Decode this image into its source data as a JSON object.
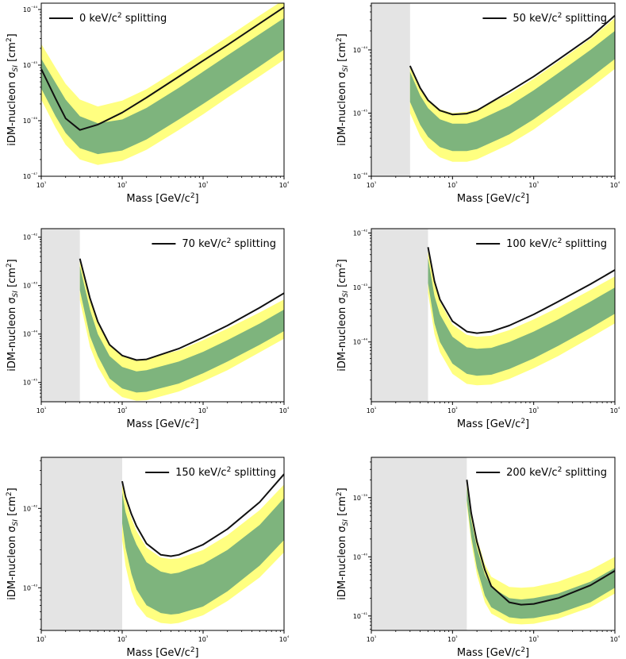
{
  "figure": {
    "xlabel": "Mass [GeV/c²]",
    "ylabel": "iDM-nucleon σ"
  },
  "colors": {
    "band2": "#ffff80",
    "band1": "#7eb47d",
    "curve": "#111111",
    "excluded": "#e4e4e4",
    "axis": "#000000"
  },
  "chart_data": [
    {
      "type": "line",
      "title": "",
      "legend": "0 keV/c² splitting",
      "legend_position": "top-left",
      "xlabel": "Mass [GeV/c²]",
      "ylabel": "iDM-nucleon σSI [cm²]",
      "xlim": [
        10,
        10000
      ],
      "ylim": [
        1e-47,
        1.3e-44
      ],
      "x_scale": "log",
      "y_scale": "log",
      "xticks": [
        {
          "v": 10,
          "label": "10¹"
        },
        {
          "v": 100,
          "label": "10²"
        },
        {
          "v": 1000,
          "label": "10³"
        },
        {
          "v": 10000,
          "label": "10⁴"
        }
      ],
      "yticks": [
        {
          "v": 1e-47,
          "label": "10⁻⁴⁷"
        },
        {
          "v": 1e-46,
          "label": "10⁻⁴⁶"
        },
        {
          "v": 1e-45,
          "label": "10⁻⁴⁵"
        },
        {
          "v": 1e-44,
          "label": "10⁻⁴⁴"
        }
      ],
      "excluded_mass_below": null,
      "x": [
        10,
        15,
        20,
        30,
        50,
        100,
        200,
        500,
        1000,
        2000,
        5000,
        10000
      ],
      "series": [
        {
          "name": "observed limit",
          "values": [
            8.5e-46,
            2.5e-46,
            1.1e-46,
            6.8e-47,
            8.5e-47,
            1.4e-46,
            2.6e-46,
            6.2e-46,
            1.2e-45,
            2.3e-45,
            5.6e-45,
            1.1e-44
          ]
        },
        {
          "name": "+2σ",
          "values": [
            2.4e-45,
            9e-46,
            4.6e-46,
            2.4e-46,
            1.8e-46,
            2.3e-46,
            3.7e-46,
            8.5e-46,
            1.65e-45,
            3.2e-45,
            7.8e-45,
            1.5e-44
          ]
        },
        {
          "name": "+1σ",
          "values": [
            1.3e-45,
            4.8e-46,
            2.4e-46,
            1.2e-46,
            9e-47,
            1.05e-46,
            1.7e-46,
            3.9e-46,
            7.6e-46,
            1.5e-45,
            3.6e-45,
            7e-45
          ]
        },
        {
          "name": "-1σ",
          "values": [
            3.8e-46,
            1.2e-46,
            6e-47,
            3.2e-47,
            2.5e-47,
            2.9e-47,
            4.6e-47,
            1.05e-46,
            2e-46,
            3.9e-46,
            9.5e-46,
            1.9e-45
          ]
        },
        {
          "name": "-2σ",
          "values": [
            2.4e-46,
            7.5e-47,
            3.7e-47,
            2e-47,
            1.6e-47,
            1.9e-47,
            3e-47,
            6.8e-47,
            1.3e-46,
            2.6e-46,
            6.3e-46,
            1.25e-45
          ]
        }
      ]
    },
    {
      "type": "line",
      "title": "",
      "legend": "50 keV/c² splitting",
      "legend_position": "top-right",
      "xlabel": "Mass [GeV/c²]",
      "ylabel": "iDM-nucleon σSI [cm²]",
      "xlim": [
        10,
        10000
      ],
      "ylim": [
        1e-46,
        5.5e-44
      ],
      "x_scale": "log",
      "y_scale": "log",
      "xticks": [
        {
          "v": 10,
          "label": "10¹"
        },
        {
          "v": 100,
          "label": "10²"
        },
        {
          "v": 1000,
          "label": "10³"
        },
        {
          "v": 10000,
          "label": "10⁴"
        }
      ],
      "yticks": [
        {
          "v": 1e-46,
          "label": "10⁻⁴⁶"
        },
        {
          "v": 1e-45,
          "label": "10⁻⁴⁵"
        },
        {
          "v": 1e-44,
          "label": "10⁻⁴⁴"
        }
      ],
      "excluded_mass_below": 30,
      "x": [
        30,
        40,
        50,
        70,
        100,
        150,
        200,
        500,
        1000,
        2000,
        5000,
        10000
      ],
      "series": [
        {
          "name": "observed limit",
          "values": [
            5.6e-45,
            2.5e-45,
            1.6e-45,
            1.1e-45,
            9.5e-46,
            9.8e-46,
            1.1e-45,
            2.2e-45,
            3.8e-45,
            7e-45,
            1.6e-44,
            3.5e-44
          ]
        },
        {
          "name": "+2σ",
          "values": [
            5.6e-45,
            2.6e-45,
            1.65e-45,
            1.15e-45,
            1e-45,
            1.05e-45,
            1.15e-45,
            2e-45,
            3.5e-45,
            6.5e-45,
            1.5e-44,
            3.2e-44
          ]
        },
        {
          "name": "+1σ",
          "values": [
            4.5e-45,
            1.9e-45,
            1.2e-45,
            8e-46,
            6.8e-46,
            6.8e-46,
            7.5e-46,
            1.3e-45,
            2.3e-45,
            4.3e-45,
            1e-44,
            2e-44
          ]
        },
        {
          "name": "-1σ",
          "values": [
            1.5e-45,
            6.5e-46,
            4.2e-46,
            2.9e-46,
            2.5e-46,
            2.5e-46,
            2.7e-46,
            4.6e-46,
            8e-46,
            1.5e-45,
            3.6e-45,
            7.2e-45
          ]
        },
        {
          "name": "-2σ",
          "values": [
            1e-45,
            4.3e-46,
            2.8e-46,
            2e-46,
            1.7e-46,
            1.7e-46,
            1.85e-46,
            3.2e-46,
            5.5e-46,
            1.05e-45,
            2.5e-45,
            5e-45
          ]
        }
      ]
    },
    {
      "type": "line",
      "title": "",
      "legend": "70 keV/c² splitting",
      "legend_position": "top-right",
      "xlabel": "Mass [GeV/c²]",
      "ylabel": "iDM-nucleon σSI [cm²]",
      "xlim": [
        10,
        10000
      ],
      "ylim": [
        4e-46,
        1.5e-42
      ],
      "x_scale": "log",
      "y_scale": "log",
      "xticks": [
        {
          "v": 10,
          "label": "10¹"
        },
        {
          "v": 100,
          "label": "10²"
        },
        {
          "v": 1000,
          "label": "10³"
        },
        {
          "v": 10000,
          "label": "10⁴"
        }
      ],
      "yticks": [
        {
          "v": 1e-45,
          "label": "10⁻⁴⁵"
        },
        {
          "v": 1e-44,
          "label": "10⁻⁴⁴"
        },
        {
          "v": 1e-43,
          "label": "10⁻⁴³"
        },
        {
          "v": 1e-42,
          "label": "10⁻⁴²"
        }
      ],
      "excluded_mass_below": 30,
      "x": [
        30,
        40,
        50,
        70,
        100,
        150,
        200,
        500,
        1000,
        2000,
        5000,
        10000
      ],
      "series": [
        {
          "name": "observed limit",
          "values": [
            3.6e-43,
            5.5e-44,
            1.8e-44,
            6e-45,
            3.6e-45,
            2.9e-45,
            3e-45,
            5e-45,
            8.5e-45,
            1.5e-44,
            3.5e-44,
            7e-44
          ]
        },
        {
          "name": "+2σ",
          "values": [
            3.6e-43,
            5.5e-44,
            1.8e-44,
            6e-45,
            3.6e-45,
            3e-45,
            3.1e-45,
            4.6e-45,
            7.5e-45,
            1.3e-44,
            2.8e-44,
            5.2e-44
          ]
        },
        {
          "name": "+1σ",
          "values": [
            2.5e-43,
            3.2e-44,
            1e-44,
            3.5e-45,
            2.1e-45,
            1.7e-45,
            1.8e-45,
            2.7e-45,
            4.3e-45,
            7.5e-45,
            1.65e-44,
            3.2e-44
          ]
        },
        {
          "name": "-1σ",
          "values": [
            8e-44,
            9e-45,
            3.5e-45,
            1.2e-45,
            7.5e-46,
            6.2e-46,
            6.4e-46,
            9.5e-46,
            1.55e-45,
            2.7e-45,
            6e-45,
            1.15e-44
          ]
        },
        {
          "name": "-2σ",
          "values": [
            5e-44,
            5.5e-45,
            2.1e-45,
            8e-46,
            5e-46,
            4.2e-46,
            4.3e-46,
            6.5e-46,
            1.05e-45,
            1.8e-45,
            4.2e-45,
            8e-45
          ]
        }
      ]
    },
    {
      "type": "line",
      "title": "",
      "legend": "100 keV/c² splitting",
      "legend_position": "top-right",
      "xlabel": "Mass [GeV/c²]",
      "ylabel": "iDM-nucleon σSI [cm²]",
      "xlim": [
        10,
        10000
      ],
      "ylim": [
        8e-46,
        1.2e-42
      ],
      "x_scale": "log",
      "y_scale": "log",
      "xticks": [
        {
          "v": 10,
          "label": "10¹"
        },
        {
          "v": 100,
          "label": "10²"
        },
        {
          "v": 1000,
          "label": "10³"
        },
        {
          "v": 10000,
          "label": "10⁴"
        }
      ],
      "yticks": [
        {
          "v": 1e-44,
          "label": "10⁻⁴⁴"
        },
        {
          "v": 1e-43,
          "label": "10⁻⁴³"
        },
        {
          "v": 1e-42,
          "label": "10⁻⁴²"
        }
      ],
      "excluded_mass_below": 50,
      "x": [
        50,
        60,
        70,
        100,
        150,
        200,
        300,
        500,
        1000,
        2000,
        5000,
        10000
      ],
      "series": [
        {
          "name": "observed limit",
          "values": [
            5.5e-43,
            1.3e-43,
            6e-44,
            2.4e-44,
            1.55e-44,
            1.45e-44,
            1.55e-44,
            2e-44,
            3.2e-44,
            5.5e-44,
            1.15e-43,
            2.1e-43
          ]
        },
        {
          "name": "+2σ",
          "values": [
            5.5e-43,
            1.2e-43,
            5.5e-44,
            2.1e-44,
            1.35e-44,
            1.25e-44,
            1.3e-44,
            1.65e-44,
            2.6e-44,
            4.3e-44,
            9e-44,
            1.6e-43
          ]
        },
        {
          "name": "+1σ",
          "values": [
            3.5e-43,
            7e-44,
            3.2e-44,
            1.25e-44,
            8e-45,
            7.5e-45,
            7.8e-45,
            1e-44,
            1.55e-44,
            2.6e-44,
            5.5e-44,
            1e-43
          ]
        },
        {
          "name": "-1σ",
          "values": [
            1.2e-43,
            2.2e-44,
            1e-44,
            4e-45,
            2.6e-45,
            2.4e-45,
            2.5e-45,
            3.2e-45,
            5e-45,
            8.5e-45,
            1.8e-44,
            3.3e-44
          ]
        },
        {
          "name": "-2σ",
          "values": [
            8e-44,
            1.4e-44,
            6.5e-45,
            2.6e-45,
            1.7e-45,
            1.6e-45,
            1.65e-45,
            2.1e-45,
            3.3e-45,
            5.5e-45,
            1.2e-44,
            2.2e-44
          ]
        }
      ]
    },
    {
      "type": "line",
      "title": "",
      "legend": "150 keV/c² splitting",
      "legend_position": "top-right",
      "xlabel": "Mass [GeV/c²]",
      "ylabel": "iDM-nucleon σSI [cm²]",
      "xlim": [
        10,
        10000
      ],
      "ylim": [
        2.9e-44,
        4.4e-42
      ],
      "x_scale": "log",
      "y_scale": "log",
      "xticks": [
        {
          "v": 10,
          "label": "10¹"
        },
        {
          "v": 100,
          "label": "10²"
        },
        {
          "v": 1000,
          "label": "10³"
        },
        {
          "v": 10000,
          "label": "10⁴"
        }
      ],
      "yticks": [
        {
          "v": 1e-43,
          "label": "10⁻⁴³"
        },
        {
          "v": 1e-42,
          "label": "10⁻⁴²"
        }
      ],
      "excluded_mass_below": 100,
      "x": [
        100,
        110,
        130,
        150,
        200,
        300,
        400,
        500,
        1000,
        2000,
        5000,
        10000
      ],
      "series": [
        {
          "name": "observed limit",
          "values": [
            2.2e-42,
            1.4e-42,
            8.5e-43,
            6e-43,
            3.6e-43,
            2.6e-43,
            2.5e-43,
            2.6e-43,
            3.5e-43,
            5.5e-43,
            1.2e-42,
            2.7e-42
          ]
        },
        {
          "name": "+2σ",
          "values": [
            2.2e-42,
            1.3e-42,
            7.5e-43,
            5.2e-43,
            3.2e-43,
            2.4e-43,
            2.3e-43,
            2.35e-43,
            3e-43,
            4.6e-43,
            9.5e-43,
            2e-42
          ]
        },
        {
          "name": "+1σ",
          "values": [
            1.6e-42,
            9e-43,
            5e-43,
            3.5e-43,
            2.1e-43,
            1.6e-43,
            1.5e-43,
            1.55e-43,
            2e-43,
            3e-43,
            6.2e-43,
            1.35e-42
          ]
        },
        {
          "name": "-1σ",
          "values": [
            6.5e-43,
            3.2e-43,
            1.5e-43,
            9.5e-44,
            6e-44,
            4.8e-44,
            4.6e-44,
            4.7e-44,
            5.8e-44,
            9e-44,
            1.9e-43,
            4e-43
          ]
        },
        {
          "name": "-2σ",
          "values": [
            4e-43,
            1.9e-43,
            9e-44,
            6.2e-44,
            4.3e-44,
            3.6e-44,
            3.5e-44,
            3.6e-44,
            4.5e-44,
            6.8e-44,
            1.35e-43,
            2.8e-43
          ]
        }
      ]
    },
    {
      "type": "line",
      "title": "",
      "legend": "200 keV/c² splitting",
      "legend_position": "top-right",
      "xlabel": "Mass [GeV/c²]",
      "ylabel": "iDM-nucleon σSI [cm²]",
      "xlim": [
        10,
        10000
      ],
      "ylim": [
        5.7e-42,
        4.8e-39
      ],
      "x_scale": "log",
      "y_scale": "log",
      "xticks": [
        {
          "v": 10,
          "label": "10¹"
        },
        {
          "v": 100,
          "label": "10²"
        },
        {
          "v": 1000,
          "label": "10³"
        },
        {
          "v": 10000,
          "label": "10⁴"
        }
      ],
      "yticks": [
        {
          "v": 1e-41,
          "label": "10⁻⁴¹"
        },
        {
          "v": 1e-40,
          "label": "10⁻⁴⁰"
        },
        {
          "v": 1e-39,
          "label": "10⁻³⁹"
        }
      ],
      "excluded_mass_below": 150,
      "x": [
        150,
        170,
        200,
        250,
        300,
        500,
        700,
        1000,
        2000,
        5000,
        10000
      ],
      "series": [
        {
          "name": "observed limit",
          "values": [
            2e-39,
            5.5e-40,
            1.8e-40,
            6e-41,
            3.2e-41,
            1.7e-41,
            1.55e-41,
            1.6e-41,
            2e-41,
            3.3e-41,
            5.8e-41
          ]
        },
        {
          "name": "+2σ",
          "values": [
            2e-39,
            6e-40,
            2.1e-40,
            7.5e-41,
            4.6e-41,
            3.1e-41,
            3e-41,
            3.1e-41,
            3.8e-41,
            6e-41,
            1e-40
          ]
        },
        {
          "name": "+1σ",
          "values": [
            1.5e-39,
            4.2e-40,
            1.4e-40,
            5e-41,
            3.1e-41,
            2e-41,
            1.9e-41,
            2e-41,
            2.4e-41,
            3.8e-41,
            6.5e-41
          ]
        },
        {
          "name": "-1σ",
          "values": [
            9e-40,
            2.2e-40,
            6.5e-41,
            2.2e-41,
            1.4e-41,
            9.5e-42,
            9e-42,
            9.2e-42,
            1.1e-41,
            1.7e-41,
            3e-41
          ]
        },
        {
          "name": "-2σ",
          "values": [
            7.5e-40,
            1.8e-40,
            5e-41,
            1.7e-41,
            1.1e-41,
            7.5e-42,
            7.2e-42,
            7.4e-42,
            9e-42,
            1.4e-41,
            2.4e-41
          ]
        }
      ]
    }
  ]
}
